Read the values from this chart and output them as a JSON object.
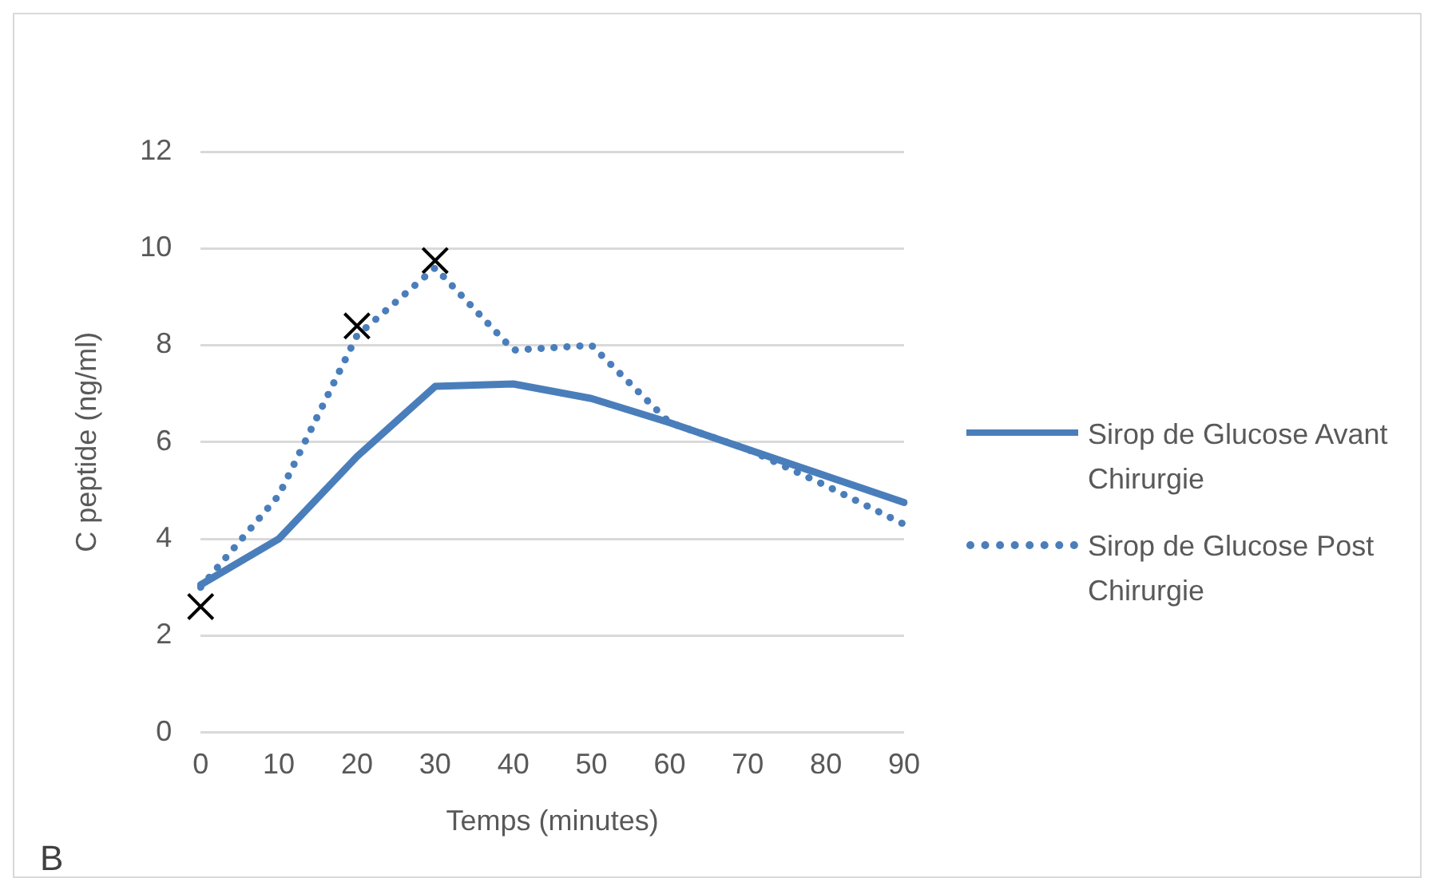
{
  "chart_data": {
    "type": "line",
    "xlabel": "Temps (minutes)",
    "ylabel": "C peptide (ng/ml)",
    "categories": [
      "0",
      "10",
      "20",
      "30",
      "40",
      "50",
      "60",
      "70",
      "80",
      "90"
    ],
    "ylim": [
      0,
      12
    ],
    "yticks": [
      0,
      2,
      4,
      6,
      8,
      10,
      12
    ],
    "grid": "y",
    "legend": "right",
    "marker": "none",
    "series": [
      {
        "name": "Sirop de Glucose Avant Chirurgie",
        "color": "#4a7ebb",
        "line_style": "solid",
        "values": [
          3.05,
          4.0,
          5.7,
          7.15,
          7.2,
          6.9,
          6.4,
          5.85,
          5.3,
          4.75
        ]
      },
      {
        "name": "Sirop de Glucose Post Chirurgie",
        "color": "#4a7ebb",
        "line_style": "dotted",
        "values": [
          3.0,
          4.9,
          8.2,
          9.6,
          7.9,
          8.0,
          6.4,
          5.85,
          5.1,
          4.3
        ]
      },
      {
        "type": "scatter",
        "color": "#000000",
        "marker": "cross",
        "x": [
          "0",
          "20",
          "30"
        ],
        "values": [
          2.6,
          8.4,
          9.75
        ]
      }
    ],
    "annotations": [
      "B"
    ]
  }
}
